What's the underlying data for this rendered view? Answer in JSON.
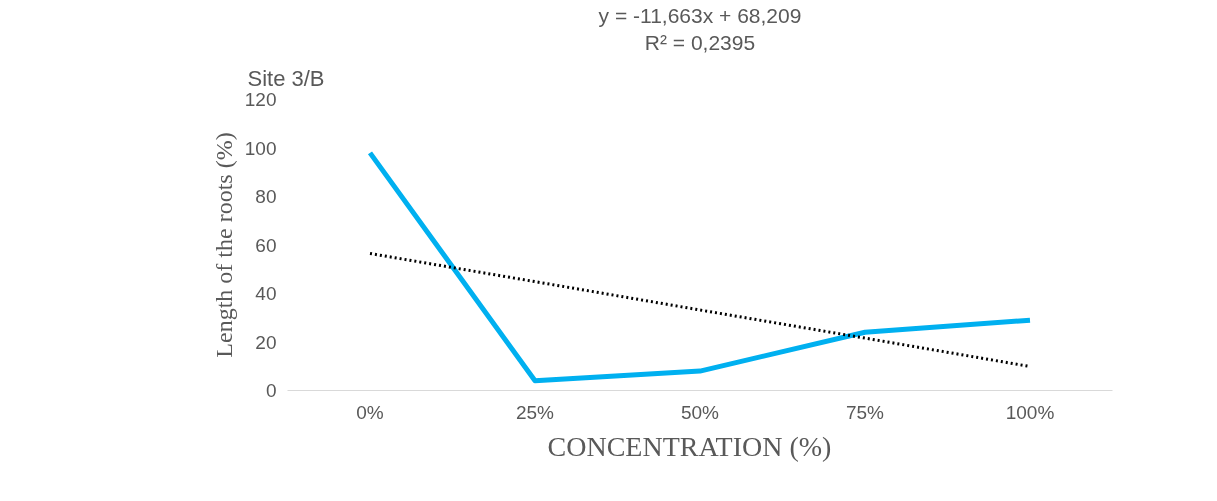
{
  "chart_data": {
    "type": "line",
    "title": "Site 3/B",
    "xlabel": "CONCENTRATION    (%)",
    "ylabel": "Length of the roots (%)",
    "categories": [
      "0%",
      "25%",
      "50%",
      "75%",
      "100%"
    ],
    "series": [
      {
        "color": "#00b0f0",
        "values": [
          98,
          4,
          8,
          24,
          29
        ]
      },
      {
        "type": "line",
        "line_style": "dotted",
        "color": "#000000",
        "values": [
          56.5,
          44.9,
          33.2,
          21.6,
          9.9
        ]
      }
    ],
    "ylim": [
      0,
      120
    ],
    "yticks": [
      0,
      20,
      40,
      60,
      80,
      100,
      120
    ],
    "grid": false,
    "annotations": [
      "y = -11,663x + 68,209",
      "R² = 0,2395"
    ]
  }
}
